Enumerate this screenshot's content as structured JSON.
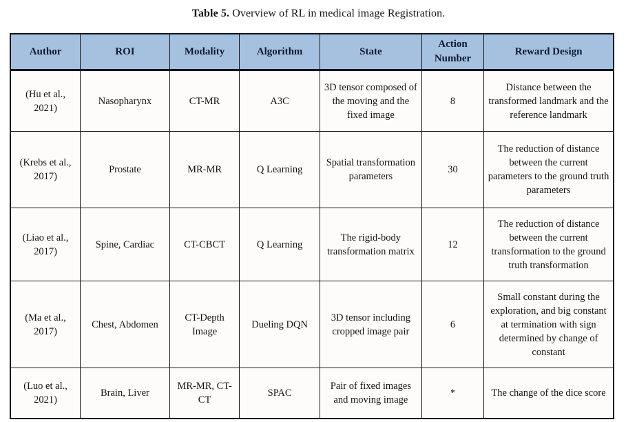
{
  "caption": {
    "label": "Table 5.",
    "text": " Overview of RL in medical image Registration."
  },
  "table": {
    "columns": [
      "Author",
      "ROI",
      "Modality",
      "Algorithm",
      "State",
      "Action Number",
      "Reward Design"
    ],
    "rows": [
      {
        "author": "(Hu et al., 2021)",
        "roi": "Nasopharynx",
        "modality": "CT-MR",
        "algorithm": "A3C",
        "state": "3D tensor composed of the moving and the fixed image",
        "action_number": "8",
        "reward_design": "Distance between the transformed landmark and the reference landmark"
      },
      {
        "author": "(Krebs et al., 2017)",
        "roi": "Prostate",
        "modality": "MR-MR",
        "algorithm": "Q Learning",
        "state": "Spatial transformation parameters",
        "action_number": "30",
        "reward_design": "The reduction of distance between the current parameters to the ground truth parameters"
      },
      {
        "author": "(Liao et al., 2017)",
        "roi": "Spine, Cardiac",
        "modality": "CT-CBCT",
        "algorithm": "Q Learning",
        "state": "The rigid-body transformation matrix",
        "action_number": "12",
        "reward_design": "The reduction of distance between the current transformation to the ground truth transformation"
      },
      {
        "author": "(Ma et al., 2017)",
        "roi": "Chest, Abdomen",
        "modality": "CT-Depth Image",
        "algorithm": "Dueling DQN",
        "state": "3D tensor including cropped image pair",
        "action_number": "6",
        "reward_design": "Small constant during the exploration, and big constant at termination with sign determined by change of constant"
      },
      {
        "author": "(Luo et al., 2021)",
        "roi": "Brain, Liver",
        "modality": "MR-MR, CT-CT",
        "algorithm": "SPAC",
        "state": "Pair of fixed images and moving image",
        "action_number": "*",
        "reward_design": "The change of the dice score"
      }
    ]
  },
  "colors": {
    "header_bg": "#a6c1e0",
    "header_text": "#0e1a30",
    "border": "#161616",
    "cell_bg": "#fdfcfa"
  }
}
